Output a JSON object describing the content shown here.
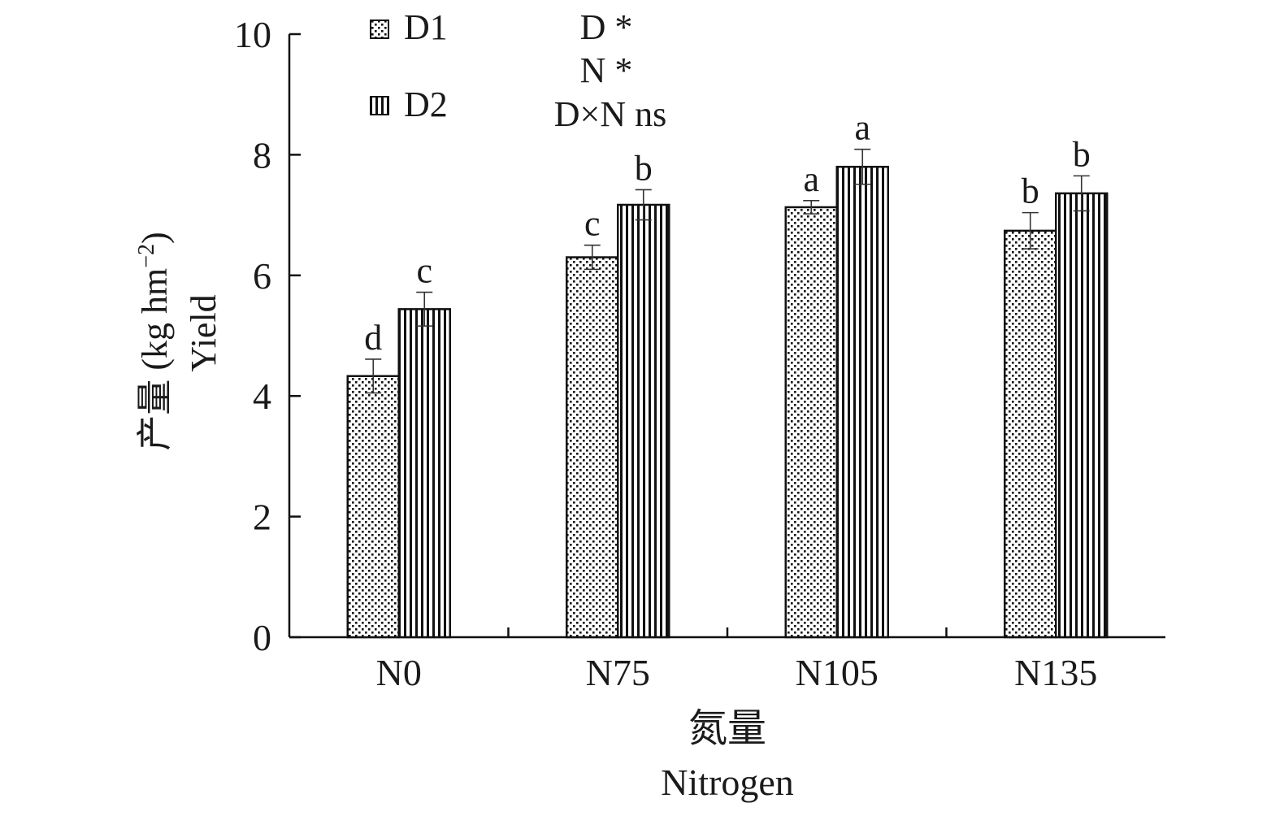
{
  "chart_data": {
    "type": "bar",
    "categories": [
      "N0",
      "N75",
      "N105",
      "N135"
    ],
    "series": [
      {
        "name": "D1",
        "values": [
          4.33,
          6.3,
          7.13,
          6.74
        ],
        "errors": [
          0.28,
          0.2,
          0.11,
          0.3
        ],
        "letters": [
          "d",
          "c",
          "a",
          "b"
        ],
        "pattern": "dots"
      },
      {
        "name": "D2",
        "values": [
          5.44,
          7.17,
          7.8,
          7.36
        ],
        "errors": [
          0.28,
          0.25,
          0.29,
          0.29
        ],
        "letters": [
          "c",
          "b",
          "a",
          "b"
        ],
        "pattern": "vertical-stripes"
      }
    ],
    "ylim": [
      0,
      10
    ],
    "yticks": [
      "0",
      "2",
      "4",
      "6",
      "8",
      "10"
    ],
    "ylabel_cn": "产量 (kg hm",
    "ylabel_sup": "−2",
    "ylabel_close": ")",
    "ylabel_en": "Yield",
    "xlabel_cn": "氮量",
    "xlabel_en": "Nitrogen",
    "annotations": [
      "D *",
      "N *",
      "D×N ns"
    ],
    "legend_position": "top-left",
    "grid": false
  }
}
